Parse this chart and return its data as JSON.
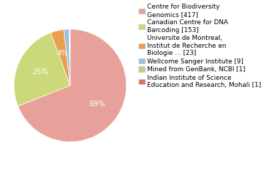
{
  "labels": [
    "Centre for Biodiversity\nGenomics [417]",
    "Canadian Centre for DNA\nBarcoding [153]",
    "Universite de Montreal,\nInstitut de Recherche en\nBiologie ... [23]",
    "Wellcome Sanger Institute [9]",
    "Mined from GenBank, NCBI [1]",
    "Indian Institute of Science\nEducation and Research, Mohali [1]"
  ],
  "values": [
    417,
    153,
    23,
    9,
    1,
    1
  ],
  "colors": [
    "#e8a09a",
    "#ccd97a",
    "#e8a050",
    "#9bbfde",
    "#b5d48a",
    "#e07060"
  ],
  "figsize": [
    3.8,
    2.4
  ],
  "dpi": 100,
  "legend_fontsize": 6.5,
  "pct_fontsize": 7.5,
  "pct_color": "white",
  "pct_threshold": 0.015
}
